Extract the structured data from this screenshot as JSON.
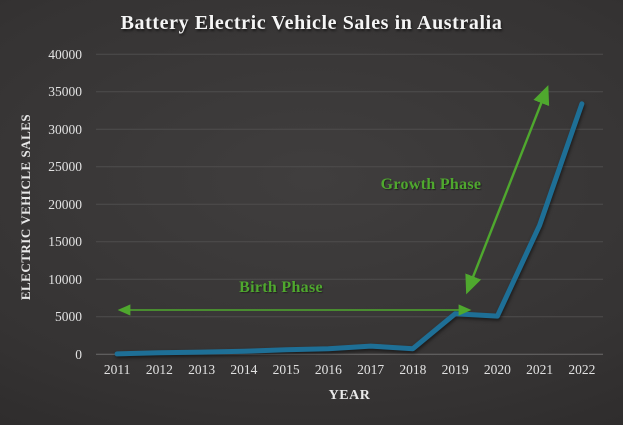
{
  "slide": {
    "title": "Battery Electric Vehicle Sales in Australia"
  },
  "chart_data": {
    "type": "line",
    "title": "Battery Electric Vehicle Sales in Australia",
    "xlabel": "YEAR",
    "ylabel": "ELECTRIC VEHICLE SALES",
    "categories": [
      "2011",
      "2012",
      "2013",
      "2014",
      "2015",
      "2016",
      "2017",
      "2018",
      "2019",
      "2020",
      "2021",
      "2022"
    ],
    "values": [
      50,
      200,
      300,
      400,
      600,
      750,
      1100,
      750,
      5400,
      5100,
      17200,
      33400
    ],
    "ylim": [
      0,
      40000
    ],
    "yticks": [
      0,
      5000,
      10000,
      15000,
      20000,
      25000,
      30000,
      35000,
      40000
    ],
    "grid": "horizontal-only",
    "legend": "none",
    "line_color": "#1e6f96",
    "annotation_color": "#4fa82e",
    "annotations": [
      {
        "label": "Birth Phase",
        "type": "double-headed-arrow",
        "span_years": "2011-2019",
        "orientation": "horizontal"
      },
      {
        "label": "Growth Phase",
        "type": "double-headed-arrow",
        "span_years": "2019-2022",
        "orientation": "diagonal-up"
      }
    ]
  }
}
